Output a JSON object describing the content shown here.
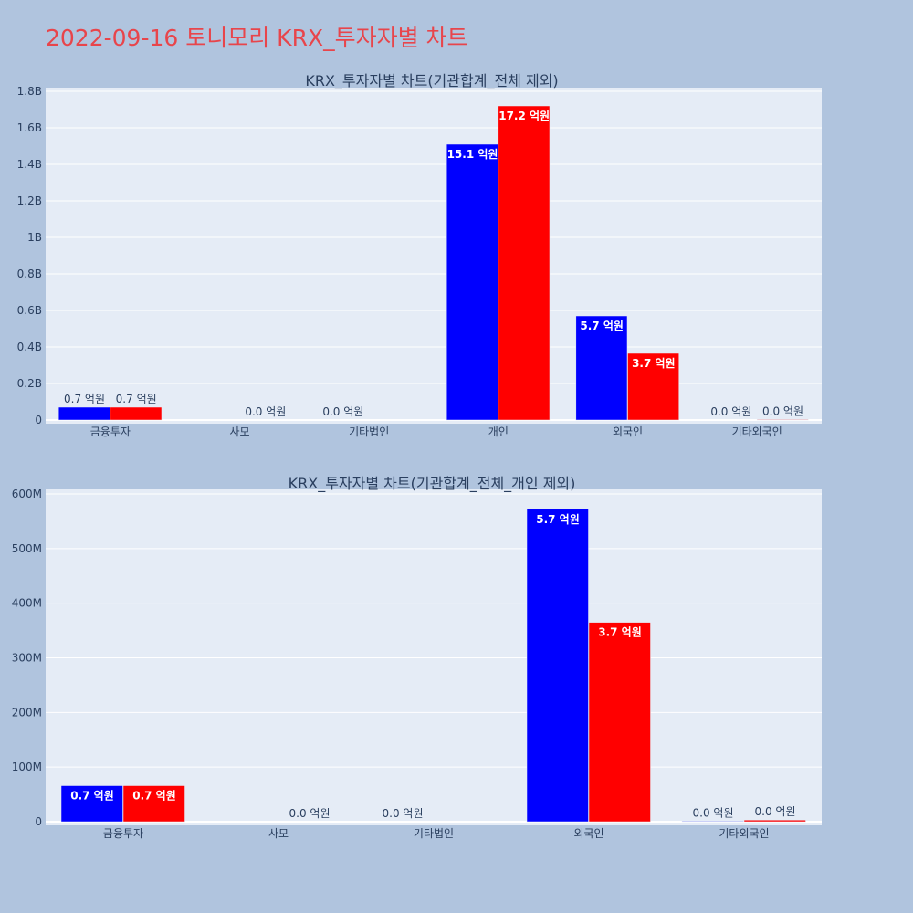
{
  "page_title": "2022-09-16 토니모리 KRX_투자자별 차트",
  "colors": {
    "background": "#b0c4de",
    "plot_background": "#e5ecf6",
    "title": "#e8454b",
    "series_1": "#0000ff",
    "series_2": "#ff0000"
  },
  "chart_data": [
    {
      "type": "bar",
      "title": "KRX_투자자별 차트(기관합계_전체 제외)",
      "categories": [
        "금융투자",
        "사모",
        "기타법인",
        "개인",
        "외국인",
        "기타외국인"
      ],
      "series": [
        {
          "color": "#0000ff",
          "values": [
            70000000,
            0,
            0,
            1510000000,
            570000000,
            0
          ],
          "labels": [
            "0.7 억원",
            "",
            "0.0 억원",
            "15.1 억원",
            "5.7 억원",
            "0.0 억원"
          ]
        },
        {
          "color": "#ff0000",
          "values": [
            70000000,
            0,
            0,
            1720000000,
            365000000,
            3000000
          ],
          "labels": [
            "0.7 억원",
            "0.0 억원",
            "",
            "17.2 억원",
            "3.7 억원",
            "0.0 억원"
          ]
        }
      ],
      "yticks": [
        "0",
        "0.2B",
        "0.4B",
        "0.6B",
        "0.8B",
        "1B",
        "1.2B",
        "1.4B",
        "1.6B",
        "1.8B"
      ],
      "ylim": [
        0,
        1800000000
      ],
      "grid": true,
      "xlabel": "",
      "ylabel": ""
    },
    {
      "type": "bar",
      "title": "KRX_투자자별 차트(기관합계_전체_개인 제외)",
      "categories": [
        "금융투자",
        "사모",
        "기타법인",
        "외국인",
        "기타외국인"
      ],
      "series": [
        {
          "color": "#0000ff",
          "values": [
            66000000,
            0,
            0,
            572000000,
            1000000
          ],
          "labels": [
            "0.7 억원",
            "",
            "0.0 억원",
            "5.7 억원",
            "0.0 억원"
          ]
        },
        {
          "color": "#ff0000",
          "values": [
            66000000,
            0,
            0,
            365000000,
            3000000
          ],
          "labels": [
            "0.7 억원",
            "0.0 억원",
            "",
            "3.7 억원",
            "0.0 억원"
          ]
        }
      ],
      "yticks": [
        "0",
        "100M",
        "200M",
        "300M",
        "400M",
        "500M",
        "600M"
      ],
      "ylim": [
        0,
        600000000
      ],
      "grid": true,
      "xlabel": "",
      "ylabel": ""
    }
  ]
}
